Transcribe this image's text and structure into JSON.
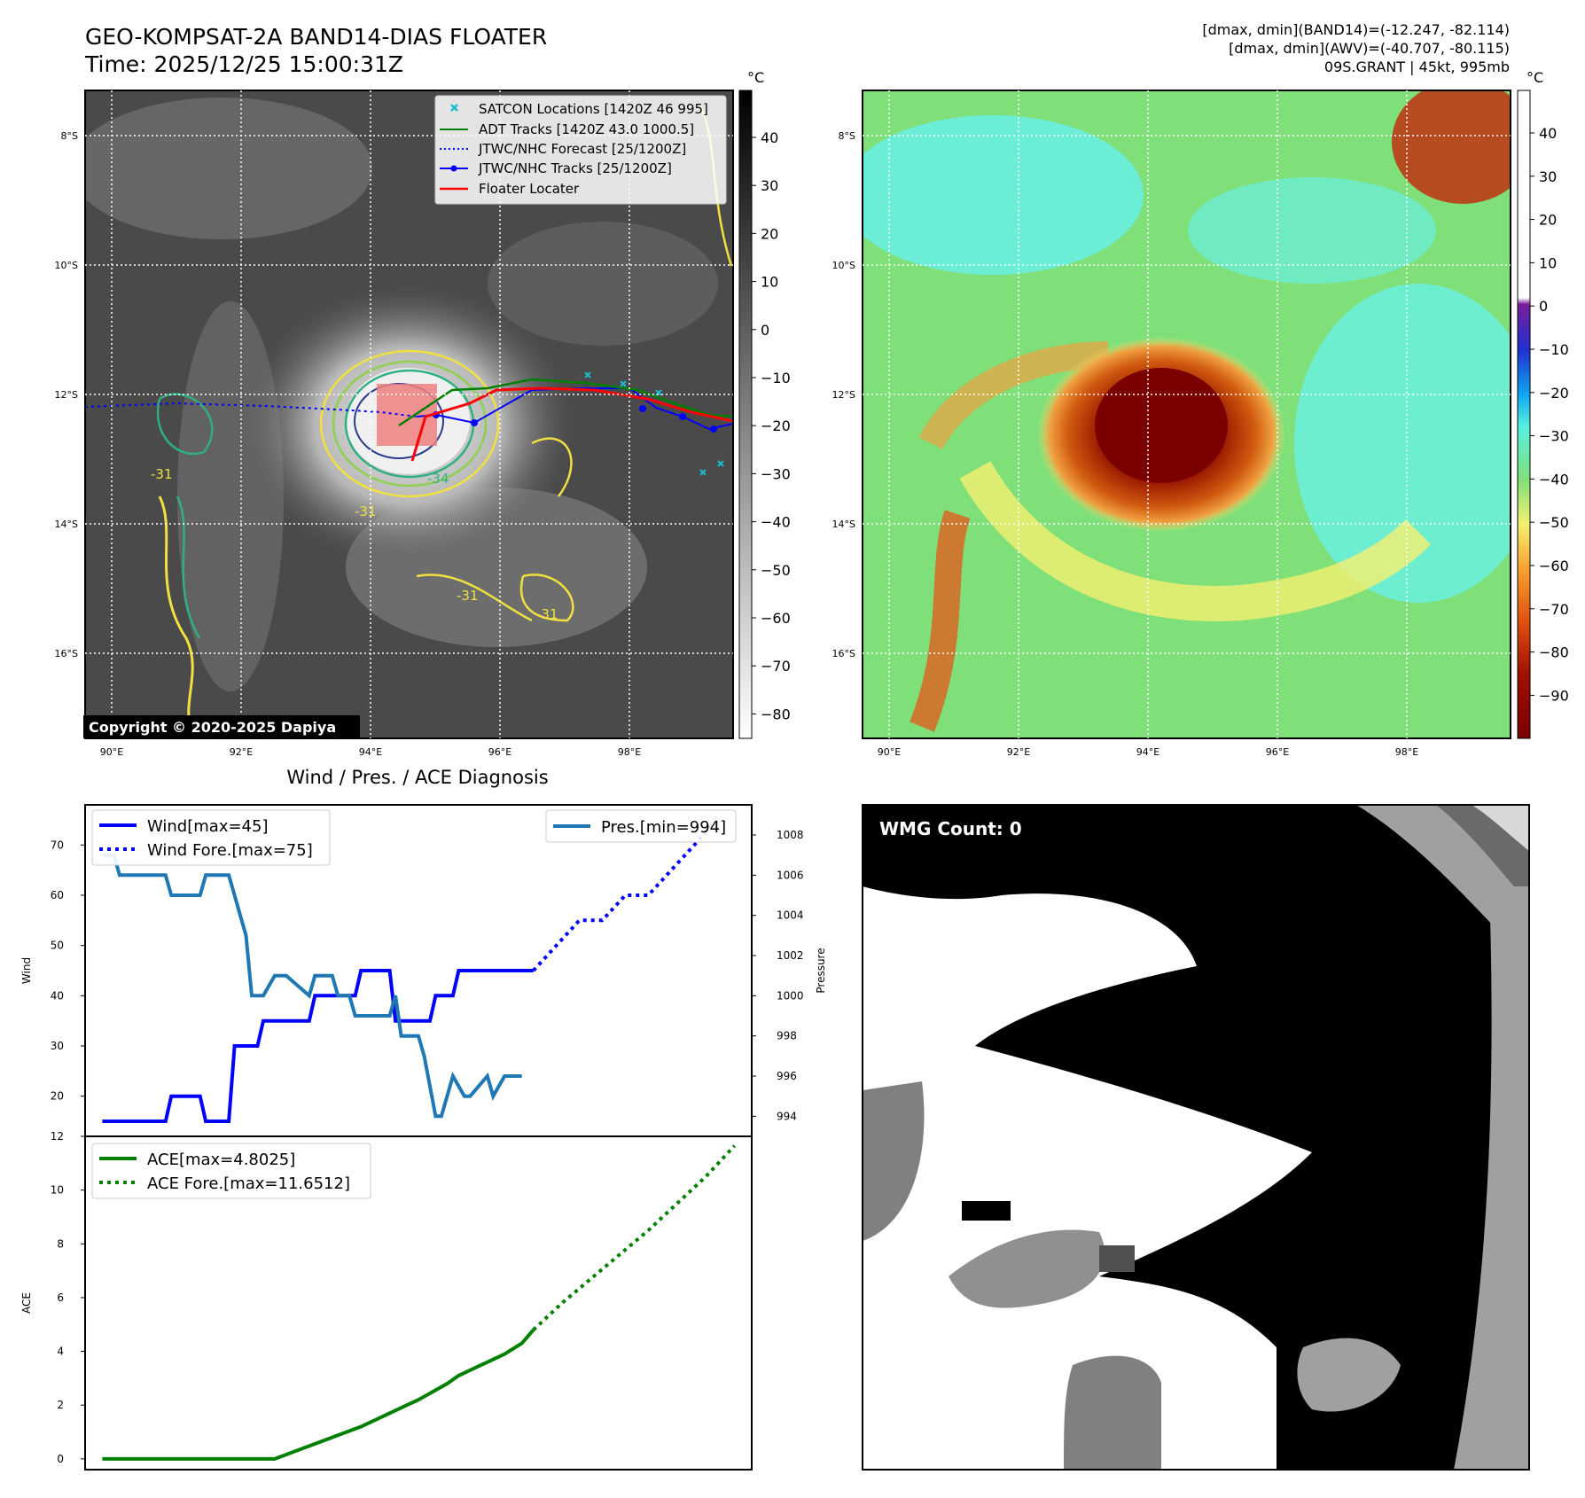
{
  "header": {
    "title_line1": "GEO-KOMPSAT-2A BAND14-DIAS FLOATER",
    "title_line2": "Time: 2025/12/25 15:00:31Z",
    "info_line1": "[dmax, dmin](BAND14)=(-12.247, -82.114)",
    "info_line2": "[dmax, dmin](AWV)=(-40.707, -80.115)",
    "info_line3": "09S.GRANT | 45kt, 995mb"
  },
  "map": {
    "lat_labels": [
      "8°S",
      "10°S",
      "12°S",
      "14°S",
      "16°S"
    ],
    "lon_labels": [
      "90°E",
      "92°E",
      "94°E",
      "96°E",
      "98°E"
    ],
    "copyright": "Copyright © 2020-2025 Dapiya",
    "contour_labels": [
      "-31",
      "-34",
      "-31",
      "-31",
      "-31"
    ],
    "legend": [
      {
        "label": "SATCON Locations [1420Z 46 995]",
        "color": "#17becf",
        "style": "x"
      },
      {
        "label": "ADT Tracks [1420Z 43.0 1000.5]",
        "color": "#008000",
        "style": "line"
      },
      {
        "label": "JTWC/NHC Forecast [25/1200Z]",
        "color": "#0000ff",
        "style": "dotted"
      },
      {
        "label": "JTWC/NHC Tracks [25/1200Z]",
        "color": "#0000ff",
        "style": "dotline"
      },
      {
        "label": "Floater Locater",
        "color": "#ff0000",
        "style": "line"
      }
    ],
    "gray_colorbar": {
      "unit": "°C",
      "ticks": [
        "40",
        "30",
        "20",
        "10",
        "0",
        "−10",
        "−20",
        "−30",
        "−40",
        "−50",
        "−60",
        "−70",
        "−80"
      ]
    },
    "color_colorbar": {
      "unit": "°C",
      "ticks": [
        "40",
        "30",
        "20",
        "10",
        "0",
        "−10",
        "−20",
        "−30",
        "−40",
        "−50",
        "−60",
        "−70",
        "−80",
        "−90"
      ]
    },
    "colors": {
      "floater_box": "#f08080",
      "adt": "#008000",
      "jtwc": "#0000ff",
      "satcon": "#17becf",
      "locater": "#ff0000"
    }
  },
  "wmg": {
    "label": "WMG Count: 0"
  },
  "chart_data": [
    {
      "type": "line",
      "title": "Wind / Pres. / ACE Diagnosis",
      "ylabel": "Wind",
      "ylim": [
        12,
        78
      ],
      "y_ticks": [
        "20",
        "30",
        "40",
        "50",
        "60",
        "70"
      ],
      "series": [
        {
          "name": "Wind[max=45]",
          "color": "#0000ff",
          "style": "solid",
          "x": [
            0,
            11,
            12,
            17,
            18,
            22,
            23,
            27,
            28,
            36,
            37,
            44,
            45,
            50,
            51,
            57,
            58,
            61,
            62,
            64,
            65,
            75
          ],
          "values": [
            15,
            15,
            20,
            20,
            15,
            15,
            30,
            30,
            35,
            35,
            40,
            40,
            45,
            45,
            35,
            35,
            40,
            40,
            45,
            45,
            45,
            45
          ]
        },
        {
          "name": "Wind Fore.[max=75]",
          "color": "#0000ff",
          "style": "dotted",
          "x": [
            75,
            79,
            83,
            87,
            91,
            95,
            99,
            103,
            107
          ],
          "values": [
            45,
            50,
            55,
            55,
            60,
            60,
            65,
            70,
            75
          ]
        }
      ]
    },
    {
      "type": "line",
      "ylabel": "Pressure",
      "ylim": [
        993.0,
        1009.5
      ],
      "y_ticks": [
        "994",
        "996",
        "998",
        "1000",
        "1002",
        "1004",
        "1006",
        "1008"
      ],
      "series": [
        {
          "name": "Pres.[min=994]",
          "color": "#1f77b4",
          "style": "solid",
          "x": [
            0,
            2,
            3,
            5,
            7,
            9,
            11,
            12,
            15,
            17,
            18,
            20,
            22,
            23,
            24,
            25,
            26,
            28,
            30,
            32,
            36,
            37,
            38,
            40,
            41,
            43,
            44,
            45,
            47,
            50,
            51,
            52,
            53,
            55,
            56,
            58,
            59,
            60,
            61,
            63,
            64,
            67,
            68,
            70,
            73
          ],
          "values": [
            1007,
            1007,
            1006,
            1006,
            1006,
            1006,
            1006,
            1005,
            1005,
            1005,
            1006,
            1006,
            1006,
            1005,
            1004,
            1003,
            1000,
            1000,
            1001,
            1001,
            1000,
            1001,
            1001,
            1001,
            1000,
            1000,
            999,
            999,
            999,
            999,
            1000,
            998,
            998,
            998,
            997,
            994,
            994,
            995,
            996,
            995,
            995,
            996,
            995,
            996,
            996
          ]
        }
      ]
    },
    {
      "type": "line",
      "ylabel": "ACE",
      "ylim": [
        -0.4,
        12.0
      ],
      "y_ticks": [
        "0",
        "2",
        "4",
        "6",
        "8",
        "10",
        "12"
      ],
      "series": [
        {
          "name": "ACE[max=4.8025]",
          "color": "#008000",
          "style": "solid",
          "x": [
            0,
            30,
            35,
            40,
            45,
            48,
            50,
            53,
            55,
            60,
            62,
            64,
            66,
            68,
            70,
            73,
            75
          ],
          "values": [
            0,
            0,
            0.4,
            0.8,
            1.2,
            1.5,
            1.7,
            2.0,
            2.2,
            2.8,
            3.1,
            3.3,
            3.5,
            3.7,
            3.9,
            4.3,
            4.8
          ]
        },
        {
          "name": "ACE Fore.[max=11.6512]",
          "color": "#008000",
          "style": "dotted",
          "x": [
            75,
            80,
            85,
            90,
            95,
            100,
            105,
            110
          ],
          "values": [
            4.8,
            5.8,
            6.7,
            7.6,
            8.5,
            9.5,
            10.5,
            11.65
          ]
        }
      ]
    }
  ]
}
